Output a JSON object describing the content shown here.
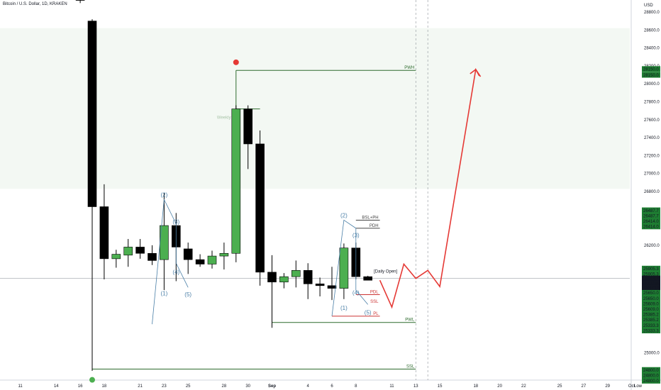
{
  "header": {
    "title": "Bitcoin / U.S. Dollar, 1D, KRAKEN"
  },
  "chart_data": {
    "type": "candlestick",
    "currency": "USD",
    "ylim": [
      24800,
      28900
    ],
    "price_ticks": [
      28800,
      28600,
      28400,
      28200,
      28000,
      27800,
      27600,
      27400,
      27200,
      27000,
      26800,
      26200,
      25000,
      24800
    ],
    "time_ticks": [
      {
        "i": -6,
        "label": "11"
      },
      {
        "i": -3,
        "label": "14"
      },
      {
        "i": -1,
        "label": "16"
      },
      {
        "i": 1,
        "label": "18"
      },
      {
        "i": 4,
        "label": "21"
      },
      {
        "i": 6,
        "label": "23"
      },
      {
        "i": 8,
        "label": "25"
      },
      {
        "i": 11,
        "label": "28"
      },
      {
        "i": 13,
        "label": "30"
      },
      {
        "i": 15,
        "label": "Sep"
      },
      {
        "i": 18,
        "label": "4"
      },
      {
        "i": 20,
        "label": "6"
      },
      {
        "i": 22,
        "label": "8"
      },
      {
        "i": 25,
        "label": "11"
      },
      {
        "i": 27,
        "label": "13"
      },
      {
        "i": 29,
        "label": "15"
      },
      {
        "i": 32,
        "label": "18"
      },
      {
        "i": 34,
        "label": "20"
      },
      {
        "i": 36,
        "label": "22"
      },
      {
        "i": 39,
        "label": "25"
      },
      {
        "i": 41,
        "label": "27"
      },
      {
        "i": 43,
        "label": "29"
      },
      {
        "i": 45,
        "label": "Oct"
      }
    ],
    "candles": [
      {
        "i": -1,
        "o": 29200,
        "h": 29200,
        "l": 28900,
        "c": 28930
      },
      {
        "i": 0,
        "o": 28700,
        "h": 28720,
        "l": 24800,
        "c": 26630
      },
      {
        "i": 1,
        "o": 26630,
        "h": 26880,
        "l": 25820,
        "c": 26050
      },
      {
        "i": 2,
        "o": 26050,
        "h": 26150,
        "l": 25950,
        "c": 26100
      },
      {
        "i": 3,
        "o": 26090,
        "h": 26270,
        "l": 25960,
        "c": 26180
      },
      {
        "i": 4,
        "o": 26180,
        "h": 26270,
        "l": 26050,
        "c": 26110
      },
      {
        "i": 5,
        "o": 26110,
        "h": 26200,
        "l": 25980,
        "c": 26030
      },
      {
        "i": 6,
        "o": 26040,
        "h": 26780,
        "l": 25700,
        "c": 26420
      },
      {
        "i": 7,
        "o": 26420,
        "h": 26560,
        "l": 25800,
        "c": 26180
      },
      {
        "i": 8,
        "o": 26160,
        "h": 26230,
        "l": 25880,
        "c": 26040
      },
      {
        "i": 9,
        "o": 26040,
        "h": 26100,
        "l": 25960,
        "c": 25990
      },
      {
        "i": 10,
        "o": 25990,
        "h": 26140,
        "l": 25940,
        "c": 26080
      },
      {
        "i": 11,
        "o": 26080,
        "h": 26230,
        "l": 25930,
        "c": 26110
      },
      {
        "i": 12,
        "o": 26110,
        "h": 27760,
        "l": 26010,
        "c": 27720
      },
      {
        "i": 13,
        "o": 27720,
        "h": 27760,
        "l": 27050,
        "c": 27330
      },
      {
        "i": 14,
        "o": 27330,
        "h": 27480,
        "l": 25750,
        "c": 25900
      },
      {
        "i": 15,
        "o": 25900,
        "h": 26090,
        "l": 25280,
        "c": 25790
      },
      {
        "i": 16,
        "o": 25790,
        "h": 25890,
        "l": 25720,
        "c": 25850
      },
      {
        "i": 17,
        "o": 25850,
        "h": 26030,
        "l": 25730,
        "c": 25920
      },
      {
        "i": 18,
        "o": 25920,
        "h": 26000,
        "l": 25600,
        "c": 25770
      },
      {
        "i": 19,
        "o": 25770,
        "h": 25840,
        "l": 25630,
        "c": 25750
      },
      {
        "i": 20,
        "o": 25750,
        "h": 25960,
        "l": 25590,
        "c": 25720
      },
      {
        "i": 21,
        "o": 25720,
        "h": 26220,
        "l": 25600,
        "c": 26170
      },
      {
        "i": 22,
        "o": 26170,
        "h": 26230,
        "l": 25820,
        "c": 25850
      },
      {
        "i": 23,
        "o": 25850,
        "h": 25860,
        "l": 25810,
        "c": 25810
      }
    ],
    "levels": [
      {
        "label": "PWH",
        "price": 28150,
        "from": 12,
        "to": 27,
        "color": "#2e6b2e"
      },
      {
        "label": "BSL+PH",
        "price": 26480,
        "from": 22,
        "to": 24,
        "color": "#444444"
      },
      {
        "label": "PDH",
        "price": 26390,
        "from": 22,
        "to": 24,
        "color": "#444444"
      },
      {
        "label": "PDL",
        "price": 25650,
        "from": 22,
        "to": 24,
        "color": "#cc3333"
      },
      {
        "label": "PL",
        "price": 25410,
        "from": 20,
        "to": 24,
        "color": "#cc3333"
      },
      {
        "label": "PWL",
        "price": 25340,
        "from": 15,
        "to": 27,
        "color": "#2e6b2e"
      },
      {
        "label": "SSL",
        "price": 24820,
        "from": 0,
        "to": 27,
        "color": "#2e6b2e"
      }
    ],
    "annotations": {
      "ssl_short": "SSL",
      "weekly_fvg": "Weekly F",
      "daily_open": "[Daily Open]",
      "wave1": [
        "(2)",
        "(3)",
        "(4)",
        "(1)",
        "(5)"
      ],
      "wave2": [
        "(2)",
        "(3)",
        "(4)",
        "(1)",
        "(5)"
      ]
    },
    "forecast_path": [
      [
        24,
        25810
      ],
      [
        25,
        25510
      ],
      [
        26,
        25990
      ],
      [
        27,
        25830
      ],
      [
        28,
        25920
      ],
      [
        29,
        25740
      ],
      [
        32,
        28160
      ],
      [
        32.4,
        28080
      ]
    ],
    "price_badges": [
      {
        "text": "28150.0",
        "price": 28165,
        "bg": "#1e7d32",
        "color": "#ffffff"
      },
      {
        "text": "28150.0",
        "price": 28100,
        "bg": "#1e7d32",
        "color": "#ffffff"
      },
      {
        "text": "26487.7",
        "price": 26590,
        "bg": "#1e7d32",
        "color": "#ffffff"
      },
      {
        "text": "26487.7",
        "price": 26530,
        "bg": "#1e7d32",
        "color": "#ffffff"
      },
      {
        "text": "26414.0",
        "price": 26470,
        "bg": "#1e7d32",
        "color": "#ffffff"
      },
      {
        "text": "26414.0",
        "price": 26410,
        "bg": "#1e7d32",
        "color": "#ffffff"
      },
      {
        "text": "25905.3",
        "price": 25940,
        "bg": "#1e7d32",
        "color": "#ffffff"
      },
      {
        "text": "25905.3",
        "price": 25880,
        "bg": "#1e7d32",
        "color": "#ffffff"
      },
      {
        "text": "25864.7",
        "price": 25830,
        "bg": "#131722",
        "color": "#ffffff"
      },
      {
        "text": "-13.11%",
        "price": 25780,
        "bg": "#131722",
        "color": "#ffffff"
      },
      {
        "text": "15:47:05",
        "price": 25730,
        "bg": "#131722",
        "color": "#ffffff"
      },
      {
        "text": "25650.0",
        "price": 25670,
        "bg": "#1e7d32",
        "color": "#ffffff"
      },
      {
        "text": "25650.0",
        "price": 25610,
        "bg": "#1e7d32",
        "color": "#ffffff"
      },
      {
        "text": "25609.0",
        "price": 25550,
        "bg": "#1e7d32",
        "color": "#ffffff"
      },
      {
        "text": "25609.0",
        "price": 25490,
        "bg": "#1e7d32",
        "color": "#ffffff"
      },
      {
        "text": "25385.2",
        "price": 25430,
        "bg": "#1e7d32",
        "color": "#ffffff"
      },
      {
        "text": "25385.2",
        "price": 25370,
        "bg": "#1e7d32",
        "color": "#ffffff"
      },
      {
        "text": "25333.3",
        "price": 25310,
        "bg": "#1e7d32",
        "color": "#ffffff"
      },
      {
        "text": "25333.3",
        "price": 25250,
        "bg": "#1e7d32",
        "color": "#ffffff"
      },
      {
        "text": "24800.0",
        "price": 24810,
        "bg": "#1e7d32",
        "color": "#ffffff"
      },
      {
        "text": "24800.0",
        "price": 24750,
        "bg": "#1e7d32",
        "color": "#ffffff"
      },
      {
        "text": "24800.0",
        "price": 24690,
        "bg": "#1e7d32",
        "color": "#ffffff"
      }
    ],
    "corner_label": "Low",
    "colors": {
      "up": "#4caf50",
      "down": "#000000",
      "forecast": "#e53935",
      "wave": "#4a7fa7",
      "zone": "#f3f8f3"
    }
  }
}
